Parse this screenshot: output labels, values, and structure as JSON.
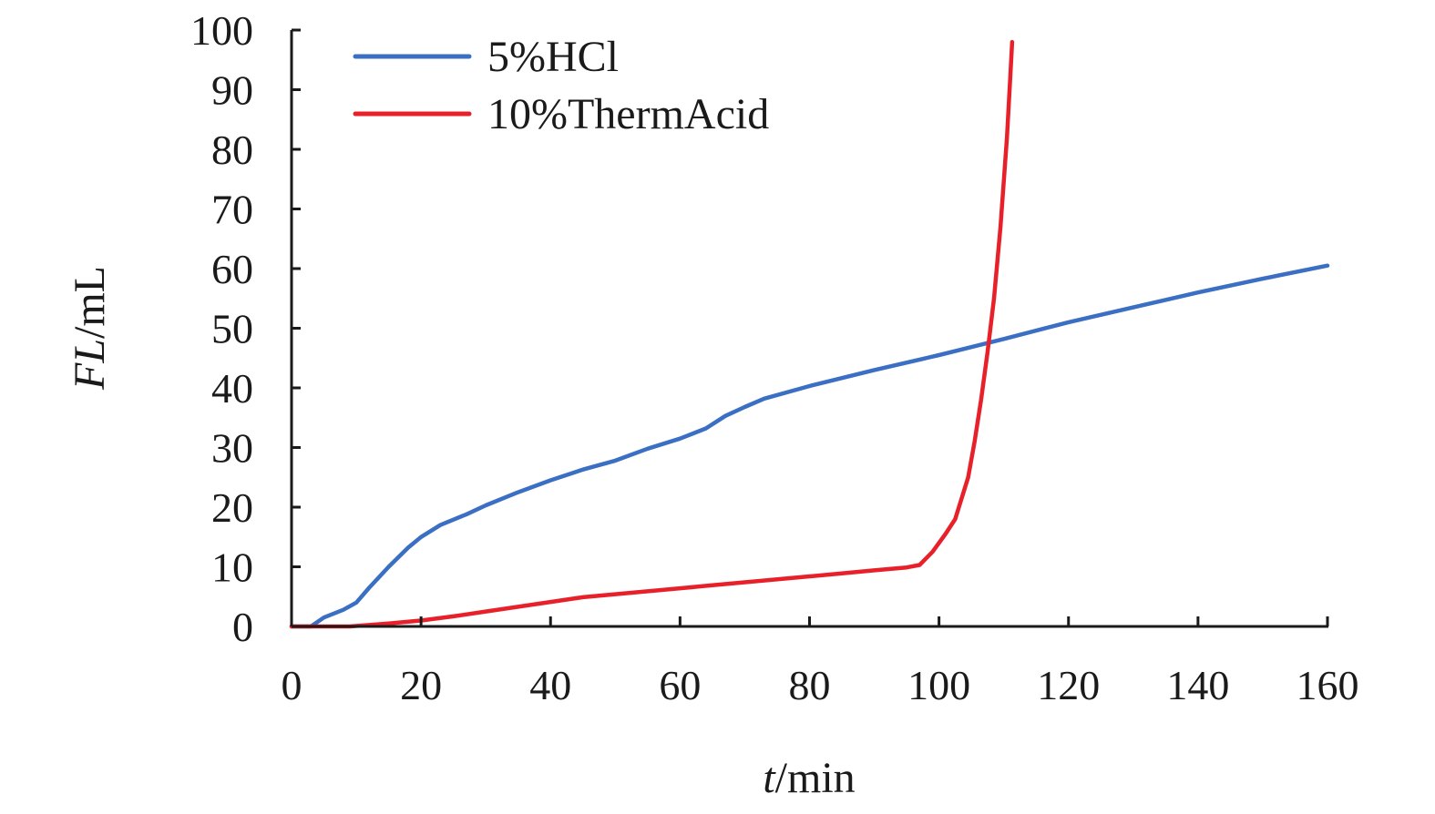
{
  "chart_data": {
    "type": "line",
    "xlabel_var": "t",
    "xlabel_unit": "/min",
    "ylabel_var": "FL",
    "ylabel_unit": "/mL",
    "xlim": [
      0,
      160
    ],
    "ylim": [
      0,
      100
    ],
    "x_ticks": [
      0,
      20,
      40,
      60,
      80,
      100,
      120,
      140,
      160
    ],
    "y_ticks": [
      0,
      10,
      20,
      30,
      40,
      50,
      60,
      70,
      80,
      90,
      100
    ],
    "grid": false,
    "legend_position": "top-left",
    "series": [
      {
        "name": "5%HCl",
        "color": "#3a6fc4",
        "points": [
          [
            0,
            0
          ],
          [
            3,
            0
          ],
          [
            5,
            1.5
          ],
          [
            8,
            2.8
          ],
          [
            10,
            4
          ],
          [
            12,
            6.5
          ],
          [
            15,
            10
          ],
          [
            18,
            13.2
          ],
          [
            20,
            15
          ],
          [
            23,
            17
          ],
          [
            27,
            18.8
          ],
          [
            30,
            20.3
          ],
          [
            35,
            22.5
          ],
          [
            40,
            24.5
          ],
          [
            45,
            26.3
          ],
          [
            50,
            27.8
          ],
          [
            55,
            29.8
          ],
          [
            60,
            31.5
          ],
          [
            64,
            33.2
          ],
          [
            67,
            35.3
          ],
          [
            70,
            36.8
          ],
          [
            73,
            38.2
          ],
          [
            80,
            40.3
          ],
          [
            90,
            43
          ],
          [
            100,
            45.5
          ],
          [
            110,
            48.2
          ],
          [
            120,
            51
          ],
          [
            130,
            53.5
          ],
          [
            140,
            56
          ],
          [
            150,
            58.3
          ],
          [
            160,
            60.5
          ]
        ]
      },
      {
        "name": "10%ThermAcid",
        "color": "#e8202a",
        "points": [
          [
            0,
            0
          ],
          [
            5,
            0
          ],
          [
            9,
            0
          ],
          [
            15,
            0.5
          ],
          [
            20,
            1
          ],
          [
            25,
            1.7
          ],
          [
            30,
            2.5
          ],
          [
            35,
            3.3
          ],
          [
            40,
            4.1
          ],
          [
            45,
            4.9
          ],
          [
            50,
            5.4
          ],
          [
            55,
            5.9
          ],
          [
            60,
            6.4
          ],
          [
            65,
            6.9
          ],
          [
            70,
            7.4
          ],
          [
            75,
            7.9
          ],
          [
            80,
            8.4
          ],
          [
            85,
            8.9
          ],
          [
            90,
            9.4
          ],
          [
            95,
            9.9
          ],
          [
            97,
            10.3
          ],
          [
            99,
            12.5
          ],
          [
            101,
            15.5
          ],
          [
            102.5,
            18
          ],
          [
            103.5,
            21.5
          ],
          [
            104.5,
            25
          ],
          [
            105.5,
            31
          ],
          [
            106.5,
            38
          ],
          [
            107.5,
            46
          ],
          [
            108.5,
            55
          ],
          [
            109.5,
            67
          ],
          [
            110.5,
            82
          ],
          [
            111,
            92
          ],
          [
            111.3,
            98
          ]
        ]
      }
    ]
  }
}
